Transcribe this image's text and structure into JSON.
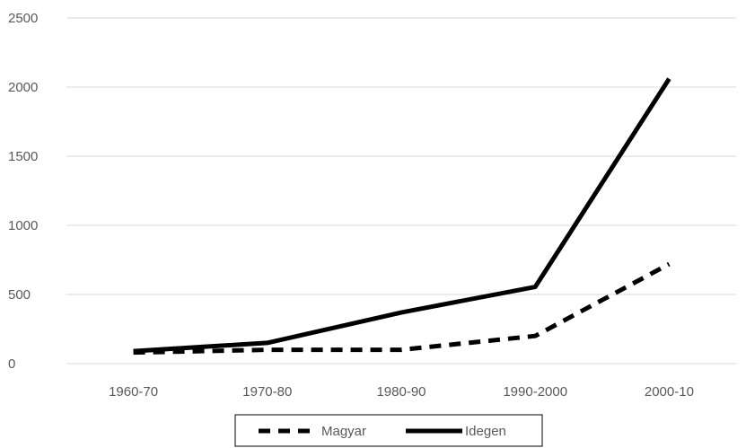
{
  "chart_data": {
    "type": "line",
    "categories": [
      "1960-70",
      "1970-80",
      "1980-90",
      "1990-2000",
      "2000-10"
    ],
    "series": [
      {
        "name": "Magyar",
        "values": [
          80,
          100,
          100,
          200,
          720
        ],
        "line_style": "dashed",
        "color": "#000000"
      },
      {
        "name": "Idegen",
        "values": [
          90,
          150,
          370,
          555,
          2060
        ],
        "line_style": "solid",
        "color": "#000000"
      }
    ],
    "yticks": [
      "0",
      "500",
      "1000",
      "1500",
      "2000",
      "2500"
    ],
    "ylim": [
      0,
      2500
    ],
    "grid": true,
    "legend_position": "bottom"
  }
}
